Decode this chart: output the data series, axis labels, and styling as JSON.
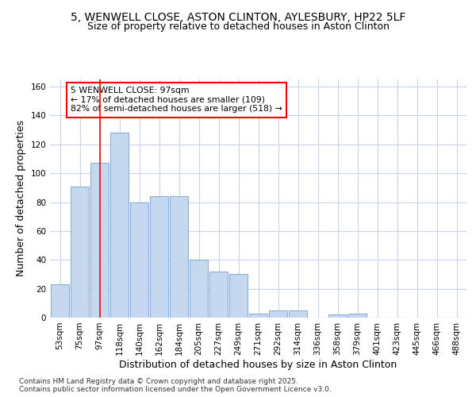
{
  "title_line1": "5, WENWELL CLOSE, ASTON CLINTON, AYLESBURY, HP22 5LF",
  "title_line2": "Size of property relative to detached houses in Aston Clinton",
  "xlabel": "Distribution of detached houses by size in Aston Clinton",
  "ylabel": "Number of detached properties",
  "categories": [
    "53sqm",
    "75sqm",
    "97sqm",
    "118sqm",
    "140sqm",
    "162sqm",
    "184sqm",
    "205sqm",
    "227sqm",
    "249sqm",
    "271sqm",
    "292sqm",
    "314sqm",
    "336sqm",
    "358sqm",
    "379sqm",
    "401sqm",
    "423sqm",
    "445sqm",
    "466sqm",
    "488sqm"
  ],
  "values": [
    23,
    91,
    107,
    128,
    80,
    84,
    84,
    40,
    32,
    30,
    3,
    5,
    5,
    0,
    2,
    3,
    0,
    0,
    0,
    0,
    0
  ],
  "bar_color": "#c5d8f0",
  "bar_edge_color": "#8ab0d8",
  "grid_color": "#c8d4e8",
  "property_line_index": 2,
  "annotation_text": "5 WENWELL CLOSE: 97sqm\n← 17% of detached houses are smaller (109)\n82% of semi-detached houses are larger (518) →",
  "annotation_box_color": "white",
  "annotation_box_edge": "red",
  "property_line_color": "red",
  "ylim": [
    0,
    165
  ],
  "yticks": [
    0,
    20,
    40,
    60,
    80,
    100,
    120,
    140,
    160
  ],
  "footer_text": "Contains HM Land Registry data © Crown copyright and database right 2025.\nContains public sector information licensed under the Open Government Licence v3.0.",
  "background_color": "#ffffff",
  "title_fontsize": 10,
  "subtitle_fontsize": 9,
  "axis_label_fontsize": 9,
  "tick_fontsize": 7.5,
  "footer_fontsize": 6.5
}
